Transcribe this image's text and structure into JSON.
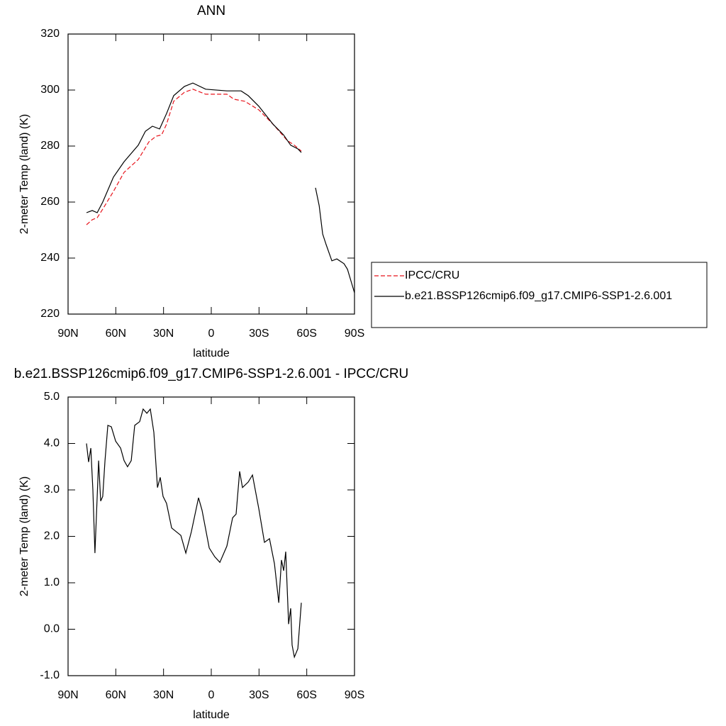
{
  "chart_data": [
    {
      "type": "line",
      "title": "ANN",
      "xlabel": "latitude",
      "ylabel": "2-meter Temp (land) (K)",
      "xlim": [
        90,
        -90
      ],
      "xticks": [
        {
          "value": 90,
          "label": "90N"
        },
        {
          "value": 60,
          "label": "60N"
        },
        {
          "value": 30,
          "label": "30N"
        },
        0,
        {
          "value": -30,
          "label": "30S"
        },
        {
          "value": -60,
          "label": "60S"
        },
        {
          "value": -90,
          "label": "90S"
        }
      ],
      "ylim": [
        220,
        320
      ],
      "yticks": [
        220,
        240,
        260,
        280,
        300,
        320
      ],
      "legend": "right",
      "series": [
        {
          "name": "IPCC/CRU",
          "color": "#e8141c",
          "dash": true,
          "x": [
            78.4,
            74.8,
            71.7,
            68.2,
            61.5,
            54.8,
            45.9,
            39.2,
            34.7,
            31.2,
            28.1,
            23.6,
            16.9,
            11.6,
            3.5,
            -9.8,
            -14.3,
            -21,
            -29.9,
            -38.8,
            -47.7,
            -52.2,
            -56.6
          ],
          "values": [
            251.9,
            253.7,
            254.4,
            257.5,
            263.8,
            270.6,
            275.2,
            281.5,
            283.5,
            284,
            287.8,
            296,
            299.2,
            300.3,
            298.5,
            298.5,
            296.7,
            296,
            292.9,
            287.8,
            282,
            280.3,
            278.2
          ]
        },
        {
          "name": "b.e21.BSSP126cmip6.f09_g17.CMIP6-SSP1-2.6.001",
          "color": "#000000",
          "dash": false,
          "x": [
            78.4,
            74.8,
            71.7,
            68.2,
            61.5,
            54.8,
            45.9,
            41.4,
            37,
            32.5,
            28.1,
            23.6,
            16.9,
            11.6,
            3.5,
            -9.8,
            -18.7,
            -23.2,
            -29.9,
            -38.8,
            -45.4,
            -49.9,
            -54.4,
            -56.6,
            -60.9,
            -65.5,
            -67.8,
            -70,
            -72.2,
            -75.8,
            -78.9,
            -83.4,
            -85.6,
            -90
          ],
          "values": [
            256.2,
            257,
            256.2,
            260,
            268.9,
            274.4,
            280.3,
            285.3,
            287.1,
            286.1,
            291.6,
            298,
            301.3,
            302.5,
            300.3,
            299.7,
            299.7,
            298,
            294.2,
            287.8,
            284,
            280.3,
            279,
            277.7,
            null,
            265.1,
            258.7,
            248.6,
            244.8,
            239,
            239.7,
            238,
            236,
            227.6
          ]
        }
      ]
    },
    {
      "type": "line",
      "title": "b.e21.BSSP126cmip6.f09_g17.CMIP6-SSP1-2.6.001 - IPCC/CRU",
      "xlabel": "latitude",
      "ylabel": "2-meter Temp (land) (K)",
      "xlim": [
        90,
        -90
      ],
      "xticks": [
        {
          "value": 90,
          "label": "90N"
        },
        {
          "value": 60,
          "label": "60N"
        },
        {
          "value": 30,
          "label": "30N"
        },
        0,
        {
          "value": -30,
          "label": "30S"
        },
        {
          "value": -60,
          "label": "60S"
        },
        {
          "value": -90,
          "label": "90S"
        }
      ],
      "ylim": [
        -1,
        5
      ],
      "yticks": [
        {
          "value": -1,
          "label": "-1.0"
        },
        {
          "value": 0,
          "label": "0.0"
        },
        {
          "value": 1,
          "label": "1.0"
        },
        {
          "value": 2,
          "label": "2.0"
        },
        {
          "value": 3,
          "label": "3.0"
        },
        {
          "value": 4,
          "label": "4.0"
        },
        {
          "value": 5,
          "label": "5.0"
        }
      ],
      "color": "#000000",
      "x": [
        78.4,
        77.1,
        75.7,
        74.4,
        73.1,
        70.8,
        69.5,
        68.2,
        66.8,
        65,
        62.8,
        60.1,
        57,
        54.8,
        52.6,
        50.3,
        48.1,
        45,
        42.8,
        40.5,
        38.3,
        36.1,
        33.8,
        32.1,
        30.3,
        28.1,
        24.9,
        19.1,
        16,
        12.5,
        8,
        5.8,
        1.3,
        -2.2,
        -5.4,
        -9.8,
        -13.4,
        -15.6,
        -17.8,
        -19.6,
        -23.2,
        -25.9,
        -29.9,
        -33.4,
        -36.6,
        -39.7,
        -42.4,
        -44.1,
        -45.5,
        -46.8,
        -48.6,
        -49.9,
        -50.8,
        -52.2,
        -54.4,
        -56.6
      ],
      "values": [
        4.0,
        3.6,
        3.9,
        3.0,
        1.64,
        3.63,
        2.76,
        2.86,
        3.63,
        4.39,
        4.36,
        4.05,
        3.9,
        3.63,
        3.5,
        3.63,
        4.39,
        4.47,
        4.74,
        4.65,
        4.74,
        4.24,
        3.05,
        3.27,
        2.86,
        2.71,
        2.18,
        2.02,
        1.64,
        2.1,
        2.83,
        2.56,
        1.75,
        1.56,
        1.44,
        1.79,
        2.4,
        2.48,
        3.4,
        3.05,
        3.17,
        3.32,
        2.59,
        1.87,
        1.95,
        1.41,
        0.57,
        1.49,
        1.26,
        1.67,
        0.11,
        0.45,
        -0.34,
        -0.6,
        -0.42,
        0.57
      ]
    }
  ]
}
